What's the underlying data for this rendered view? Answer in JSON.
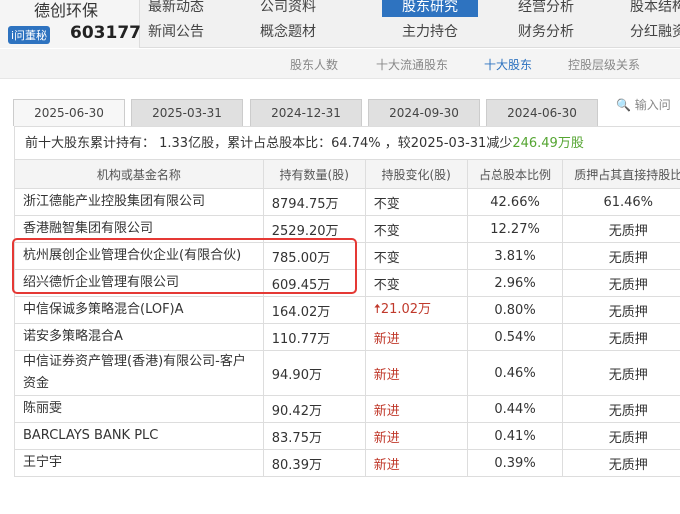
{
  "brand": {
    "name": "德创环保",
    "badge": "i问董秘",
    "code": "603177"
  },
  "nav": {
    "row1": [
      "最新动态",
      "公司资料",
      "股东研究",
      "经营分析",
      "股本结构"
    ],
    "row2": [
      "新闻公告",
      "概念题材",
      "主力持仓",
      "财务分析",
      "分红融资"
    ],
    "active": "股东研究"
  },
  "subnav": [
    "股东人数",
    "十大流通股东",
    "十大股东",
    "控股层级关系"
  ],
  "subnav_active": "十大股东",
  "tabs": [
    "2025-06-30",
    "2025-03-31",
    "2024-12-31",
    "2024-09-30",
    "2024-06-30"
  ],
  "search_placeholder": "输入问",
  "summary": {
    "prefix": "前十大股东累计持有： 1.33亿股，累计占总股本比：64.74% ，较2025-03-31减少",
    "change": "246.49万股"
  },
  "colors": {
    "accent": "#2e73c0",
    "increase": "#c0392b",
    "decrease": "#55a532",
    "highlight": "#e53935"
  },
  "table": {
    "headers": [
      "机构或基金名称",
      "持有数量(股)",
      "持股变化(股)",
      "占总股本比例",
      "质押占其直接持股比"
    ],
    "rows": [
      [
        "浙江德能产业控股集团有限公司",
        "8794.75万",
        "不变",
        "42.66%",
        "61.46%"
      ],
      [
        "香港融智集团有限公司",
        "2529.20万",
        "不变",
        "12.27%",
        "无质押"
      ],
      [
        "杭州展创企业管理合伙企业(有限合伙)",
        "785.00万",
        "不变",
        "3.81%",
        "无质押"
      ],
      [
        "绍兴德忻企业管理有限公司",
        "609.45万",
        "不变",
        "2.96%",
        "无质押"
      ],
      [
        "中信保诚多策略混合(LOF)A",
        "164.02万",
        "21.02万",
        "0.80%",
        "无质押"
      ],
      [
        "诺安多策略混合A",
        "110.77万",
        "新进",
        "0.54%",
        "无质押"
      ],
      [
        "中信证券资产管理(香港)有限公司-客户资金",
        "94.90万",
        "新进",
        "0.46%",
        "无质押"
      ],
      [
        "陈丽雯",
        "90.42万",
        "新进",
        "0.44%",
        "无质押"
      ],
      [
        "BARCLAYS BANK PLC",
        "83.75万",
        "新进",
        "0.41%",
        "无质押"
      ],
      [
        "王宁宇",
        "80.39万",
        "新进",
        "0.39%",
        "无质押"
      ]
    ]
  }
}
